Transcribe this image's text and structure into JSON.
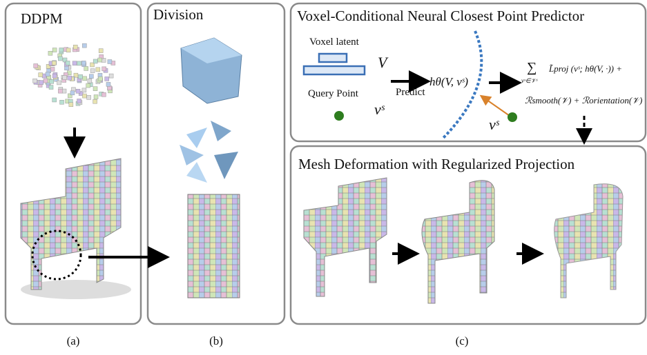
{
  "panel_a": {
    "title": "DDPM",
    "caption": "(a)"
  },
  "panel_b": {
    "title": "Division",
    "caption": "(b)"
  },
  "panel_c": {
    "title": "Voxel-Conditional Neural Closest Point Predictor",
    "caption": "(c)",
    "voxel_latent": "Voxel latent",
    "voxel_symbol": "V",
    "query_point": "Query Point",
    "query_symbol": "vˢ",
    "predict": "Predict",
    "function": "hθ(V, vˢ)",
    "target_symbol": "vˢ",
    "sum_symbol": "∑",
    "sum_index": "vˢ∈𝒱ˢ",
    "loss_term": "L̃proj (vˢ; hθ(V, ·)) +",
    "regularizers": "ℛsmooth(𝒱) + ℛorientation(𝒱)",
    "deformation_title": "Mesh Deformation with Regularized Projection"
  }
}
